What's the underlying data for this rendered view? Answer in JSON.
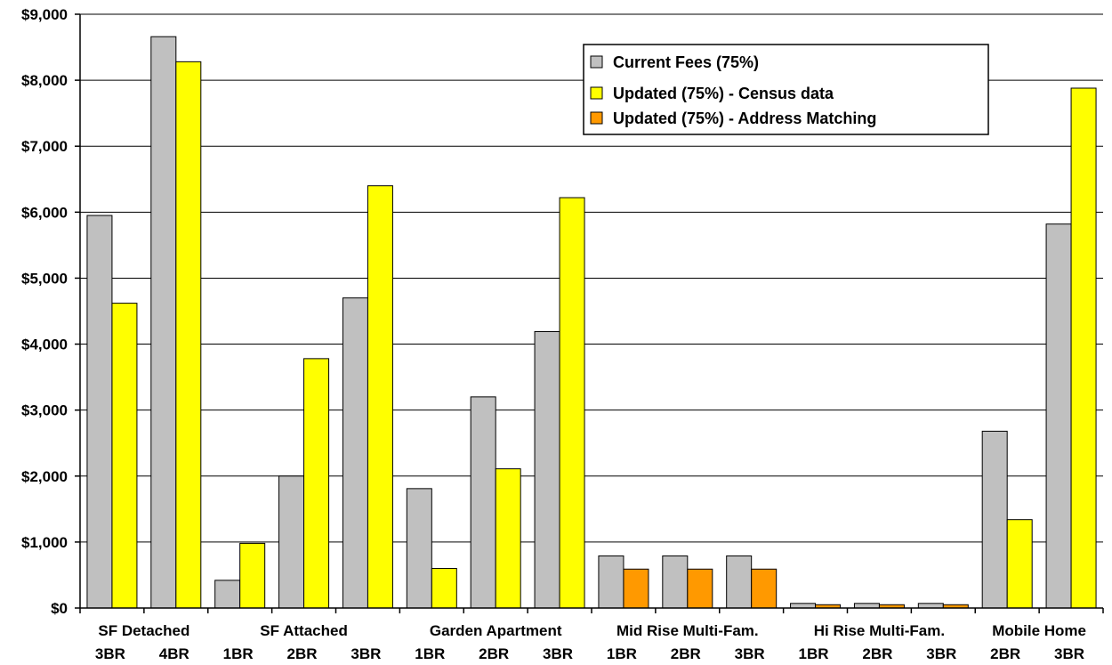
{
  "chart_data": {
    "type": "bar",
    "ylim": [
      0,
      9000
    ],
    "y_ticks": [
      "$0",
      "$1,000",
      "$2,000",
      "$3,000",
      "$4,000",
      "$5,000",
      "$6,000",
      "$7,000",
      "$8,000",
      "$9,000"
    ],
    "y_tick_values": [
      0,
      1000,
      2000,
      3000,
      4000,
      5000,
      6000,
      7000,
      8000,
      9000
    ],
    "grid": true,
    "legend_position": "top-right",
    "group_labels": [
      "SF Detached",
      "SF Attached",
      "Garden Apartment",
      "Mid Rise Multi-Fam.",
      "Hi Rise Multi-Fam.",
      "Mobile Home"
    ],
    "categories": [
      {
        "group": 0,
        "label": "3BR",
        "current": 5950,
        "census": 4620,
        "address": null
      },
      {
        "group": 0,
        "label": "4BR",
        "current": 8660,
        "census": 8280,
        "address": null
      },
      {
        "group": 1,
        "label": "1BR",
        "current": 420,
        "census": 980,
        "address": null
      },
      {
        "group": 1,
        "label": "2BR",
        "current": 2000,
        "census": 3780,
        "address": null
      },
      {
        "group": 1,
        "label": "3BR",
        "current": 4700,
        "census": 6400,
        "address": null
      },
      {
        "group": 2,
        "label": "1BR",
        "current": 1810,
        "census": 600,
        "address": null
      },
      {
        "group": 2,
        "label": "2BR",
        "current": 3200,
        "census": 2110,
        "address": null
      },
      {
        "group": 2,
        "label": "3BR",
        "current": 4190,
        "census": 6220,
        "address": null
      },
      {
        "group": 3,
        "label": "1BR",
        "current": 790,
        "census": null,
        "address": 590
      },
      {
        "group": 3,
        "label": "2BR",
        "current": 790,
        "census": null,
        "address": 590
      },
      {
        "group": 3,
        "label": "3BR",
        "current": 790,
        "census": null,
        "address": 590
      },
      {
        "group": 4,
        "label": "1BR",
        "current": 70,
        "census": null,
        "address": 50
      },
      {
        "group": 4,
        "label": "2BR",
        "current": 70,
        "census": null,
        "address": 50
      },
      {
        "group": 4,
        "label": "3BR",
        "current": 70,
        "census": null,
        "address": 50
      },
      {
        "group": 5,
        "label": "2BR",
        "current": 2680,
        "census": 1340,
        "address": null
      },
      {
        "group": 5,
        "label": "3BR",
        "current": 5820,
        "census": 7880,
        "address": null
      }
    ],
    "series": [
      {
        "key": "current",
        "name": "Current Fees (75%)",
        "color": "#c0c0c0"
      },
      {
        "key": "census",
        "name": "Updated (75%) - Census data",
        "color": "#ffff00"
      },
      {
        "key": "address",
        "name": "Updated (75%) - Address Matching",
        "color": "#ff9900"
      }
    ]
  }
}
